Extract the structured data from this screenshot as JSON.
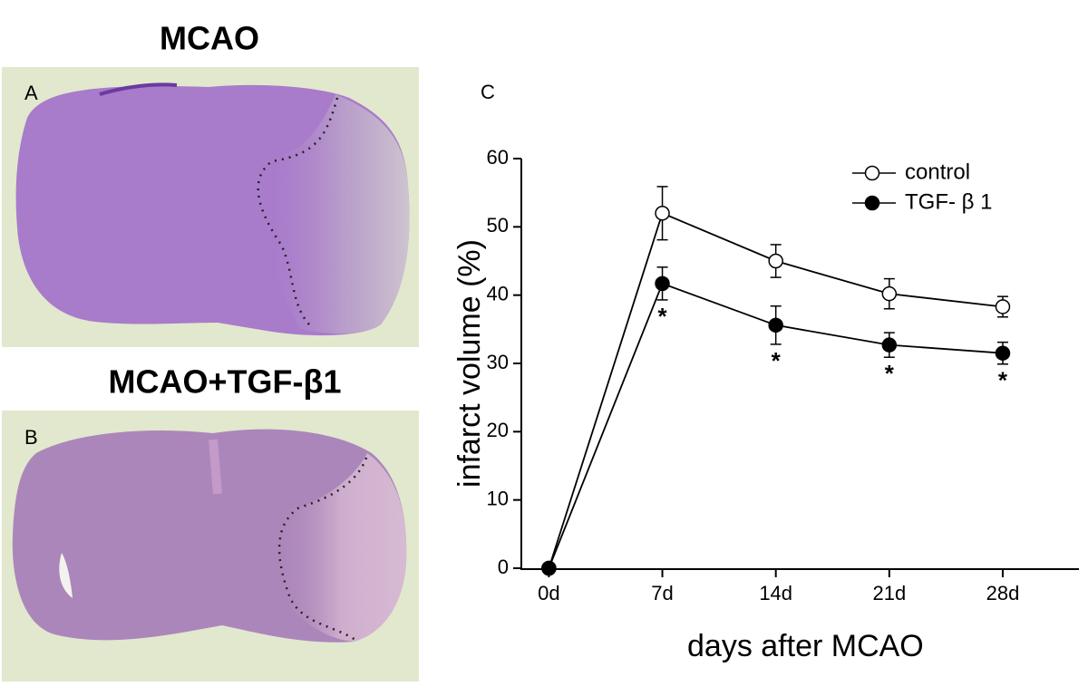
{
  "figure": {
    "panel_a_title": "MCAO",
    "panel_a_label": "A",
    "panel_b_title": "MCAO+TGF-β1",
    "panel_b_label": "B"
  },
  "chart_data": {
    "type": "line",
    "panel_label": "C",
    "x_label": "days after MCAO",
    "y_label": "infarct volume (%)",
    "x": [
      0,
      7,
      14,
      21,
      28
    ],
    "series": [
      {
        "name": "control",
        "color": "#000000",
        "marker": "open",
        "values": [
          0,
          52,
          45,
          40.2,
          38.3
        ],
        "errors": [
          null,
          3.9,
          2.4,
          2.2,
          1.5
        ]
      },
      {
        "name": "TGF- β 1",
        "color": "#000000",
        "marker": "filled",
        "values": [
          0,
          41.7,
          35.6,
          32.7,
          31.5
        ],
        "errors": [
          null,
          2.4,
          2.8,
          1.8,
          1.6
        ]
      }
    ],
    "annotations": [
      {
        "x": 7,
        "text": "*"
      },
      {
        "x": 14,
        "text": "*"
      },
      {
        "x": 21,
        "text": "*"
      },
      {
        "x": 28,
        "text": "*"
      }
    ],
    "xlim": [
      -1.7,
      32.7
    ],
    "ylim": [
      0,
      60
    ],
    "xticks": [
      {
        "value": 0,
        "label": "0d"
      },
      {
        "value": 7,
        "label": "7d"
      },
      {
        "value": 14,
        "label": "14d"
      },
      {
        "value": 21,
        "label": "21d"
      },
      {
        "value": 28,
        "label": "28d"
      }
    ],
    "yticks": [
      0,
      10,
      20,
      30,
      40,
      50,
      60
    ],
    "legend": "top-right",
    "grid": false
  }
}
